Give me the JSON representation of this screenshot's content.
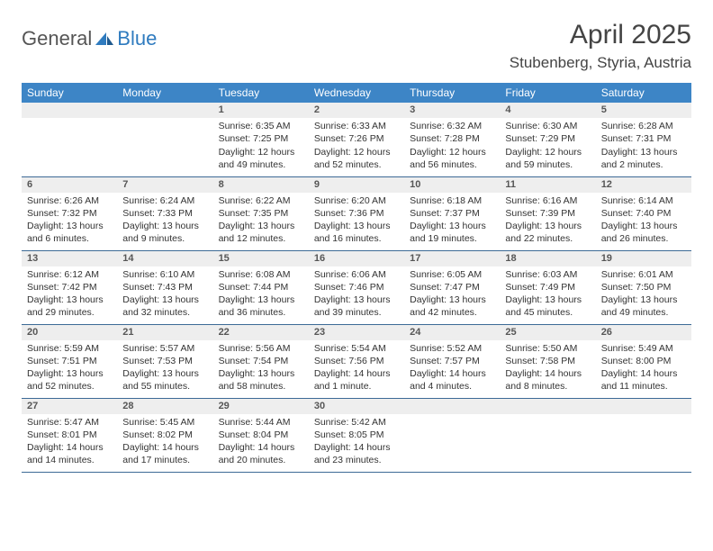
{
  "brand": {
    "part1": "General",
    "part2": "Blue"
  },
  "title": "April 2025",
  "location": "Stubenberg, Styria, Austria",
  "colors": {
    "header_bg": "#3d85c6",
    "header_fg": "#ffffff",
    "row_divider": "#3d6a96",
    "daynum_bg": "#eeeeee",
    "brand_gray": "#555555",
    "brand_blue": "#2f7bbf"
  },
  "weekdays": [
    "Sunday",
    "Monday",
    "Tuesday",
    "Wednesday",
    "Thursday",
    "Friday",
    "Saturday"
  ],
  "weeks": [
    [
      null,
      null,
      {
        "n": "1",
        "sr": "Sunrise: 6:35 AM",
        "ss": "Sunset: 7:25 PM",
        "dl": "Daylight: 12 hours and 49 minutes."
      },
      {
        "n": "2",
        "sr": "Sunrise: 6:33 AM",
        "ss": "Sunset: 7:26 PM",
        "dl": "Daylight: 12 hours and 52 minutes."
      },
      {
        "n": "3",
        "sr": "Sunrise: 6:32 AM",
        "ss": "Sunset: 7:28 PM",
        "dl": "Daylight: 12 hours and 56 minutes."
      },
      {
        "n": "4",
        "sr": "Sunrise: 6:30 AM",
        "ss": "Sunset: 7:29 PM",
        "dl": "Daylight: 12 hours and 59 minutes."
      },
      {
        "n": "5",
        "sr": "Sunrise: 6:28 AM",
        "ss": "Sunset: 7:31 PM",
        "dl": "Daylight: 13 hours and 2 minutes."
      }
    ],
    [
      {
        "n": "6",
        "sr": "Sunrise: 6:26 AM",
        "ss": "Sunset: 7:32 PM",
        "dl": "Daylight: 13 hours and 6 minutes."
      },
      {
        "n": "7",
        "sr": "Sunrise: 6:24 AM",
        "ss": "Sunset: 7:33 PM",
        "dl": "Daylight: 13 hours and 9 minutes."
      },
      {
        "n": "8",
        "sr": "Sunrise: 6:22 AM",
        "ss": "Sunset: 7:35 PM",
        "dl": "Daylight: 13 hours and 12 minutes."
      },
      {
        "n": "9",
        "sr": "Sunrise: 6:20 AM",
        "ss": "Sunset: 7:36 PM",
        "dl": "Daylight: 13 hours and 16 minutes."
      },
      {
        "n": "10",
        "sr": "Sunrise: 6:18 AM",
        "ss": "Sunset: 7:37 PM",
        "dl": "Daylight: 13 hours and 19 minutes."
      },
      {
        "n": "11",
        "sr": "Sunrise: 6:16 AM",
        "ss": "Sunset: 7:39 PM",
        "dl": "Daylight: 13 hours and 22 minutes."
      },
      {
        "n": "12",
        "sr": "Sunrise: 6:14 AM",
        "ss": "Sunset: 7:40 PM",
        "dl": "Daylight: 13 hours and 26 minutes."
      }
    ],
    [
      {
        "n": "13",
        "sr": "Sunrise: 6:12 AM",
        "ss": "Sunset: 7:42 PM",
        "dl": "Daylight: 13 hours and 29 minutes."
      },
      {
        "n": "14",
        "sr": "Sunrise: 6:10 AM",
        "ss": "Sunset: 7:43 PM",
        "dl": "Daylight: 13 hours and 32 minutes."
      },
      {
        "n": "15",
        "sr": "Sunrise: 6:08 AM",
        "ss": "Sunset: 7:44 PM",
        "dl": "Daylight: 13 hours and 36 minutes."
      },
      {
        "n": "16",
        "sr": "Sunrise: 6:06 AM",
        "ss": "Sunset: 7:46 PM",
        "dl": "Daylight: 13 hours and 39 minutes."
      },
      {
        "n": "17",
        "sr": "Sunrise: 6:05 AM",
        "ss": "Sunset: 7:47 PM",
        "dl": "Daylight: 13 hours and 42 minutes."
      },
      {
        "n": "18",
        "sr": "Sunrise: 6:03 AM",
        "ss": "Sunset: 7:49 PM",
        "dl": "Daylight: 13 hours and 45 minutes."
      },
      {
        "n": "19",
        "sr": "Sunrise: 6:01 AM",
        "ss": "Sunset: 7:50 PM",
        "dl": "Daylight: 13 hours and 49 minutes."
      }
    ],
    [
      {
        "n": "20",
        "sr": "Sunrise: 5:59 AM",
        "ss": "Sunset: 7:51 PM",
        "dl": "Daylight: 13 hours and 52 minutes."
      },
      {
        "n": "21",
        "sr": "Sunrise: 5:57 AM",
        "ss": "Sunset: 7:53 PM",
        "dl": "Daylight: 13 hours and 55 minutes."
      },
      {
        "n": "22",
        "sr": "Sunrise: 5:56 AM",
        "ss": "Sunset: 7:54 PM",
        "dl": "Daylight: 13 hours and 58 minutes."
      },
      {
        "n": "23",
        "sr": "Sunrise: 5:54 AM",
        "ss": "Sunset: 7:56 PM",
        "dl": "Daylight: 14 hours and 1 minute."
      },
      {
        "n": "24",
        "sr": "Sunrise: 5:52 AM",
        "ss": "Sunset: 7:57 PM",
        "dl": "Daylight: 14 hours and 4 minutes."
      },
      {
        "n": "25",
        "sr": "Sunrise: 5:50 AM",
        "ss": "Sunset: 7:58 PM",
        "dl": "Daylight: 14 hours and 8 minutes."
      },
      {
        "n": "26",
        "sr": "Sunrise: 5:49 AM",
        "ss": "Sunset: 8:00 PM",
        "dl": "Daylight: 14 hours and 11 minutes."
      }
    ],
    [
      {
        "n": "27",
        "sr": "Sunrise: 5:47 AM",
        "ss": "Sunset: 8:01 PM",
        "dl": "Daylight: 14 hours and 14 minutes."
      },
      {
        "n": "28",
        "sr": "Sunrise: 5:45 AM",
        "ss": "Sunset: 8:02 PM",
        "dl": "Daylight: 14 hours and 17 minutes."
      },
      {
        "n": "29",
        "sr": "Sunrise: 5:44 AM",
        "ss": "Sunset: 8:04 PM",
        "dl": "Daylight: 14 hours and 20 minutes."
      },
      {
        "n": "30",
        "sr": "Sunrise: 5:42 AM",
        "ss": "Sunset: 8:05 PM",
        "dl": "Daylight: 14 hours and 23 minutes."
      },
      null,
      null,
      null
    ]
  ]
}
